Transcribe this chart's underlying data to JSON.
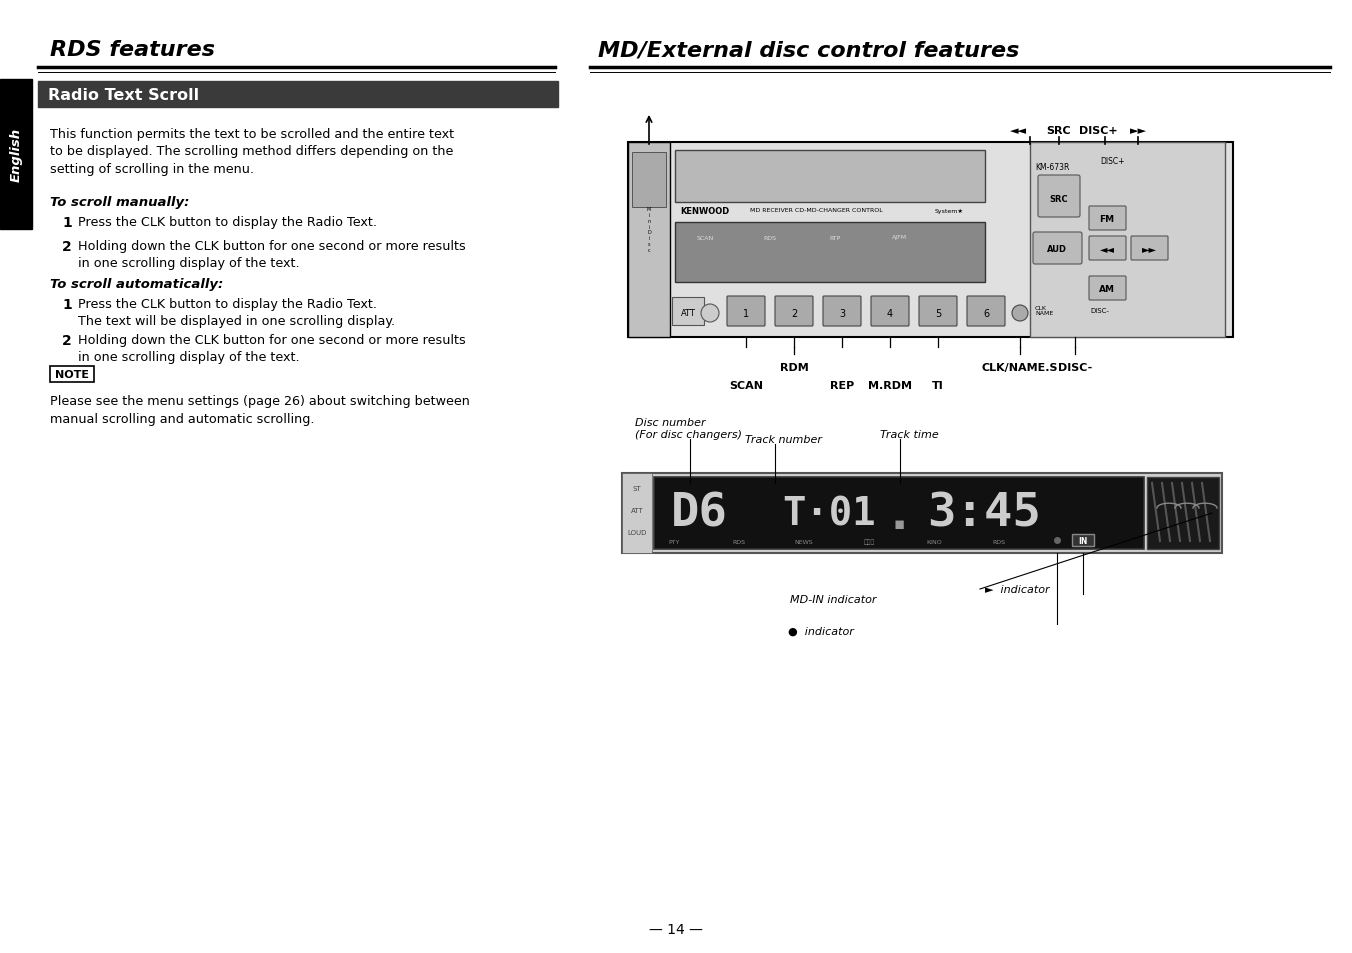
{
  "bg_color": "#ffffff",
  "rds_title": "RDS features",
  "md_title": "MD/External disc control features",
  "section_header": "Radio Text Scroll",
  "section_header_bg": "#3a3a3a",
  "section_header_color": "#ffffff",
  "english_tab_text": "English",
  "body_text_1": "This function permits the text to be scrolled and the entire text\nto be displayed. The scrolling method differs depending on the\nsetting of scrolling in the menu.",
  "manually_header": "To scroll manually:",
  "manually_1": "Press the CLK button to display the Radio Text.",
  "manually_2": "Holding down the CLK button for one second or more results\nin one scrolling display of the text.",
  "auto_header": "To scroll automatically:",
  "auto_1": "Press the CLK button to display the Radio Text.\nThe text will be displayed in one scrolling display.",
  "auto_2": "Holding down the CLK button for one second or more results\nin one scrolling display of the text.",
  "note_label": "NOTE",
  "note_text": "Please see the menu settings (page 26) about switching between\nmanual scrolling and automatic scrolling.",
  "page_number": "— 14 —"
}
